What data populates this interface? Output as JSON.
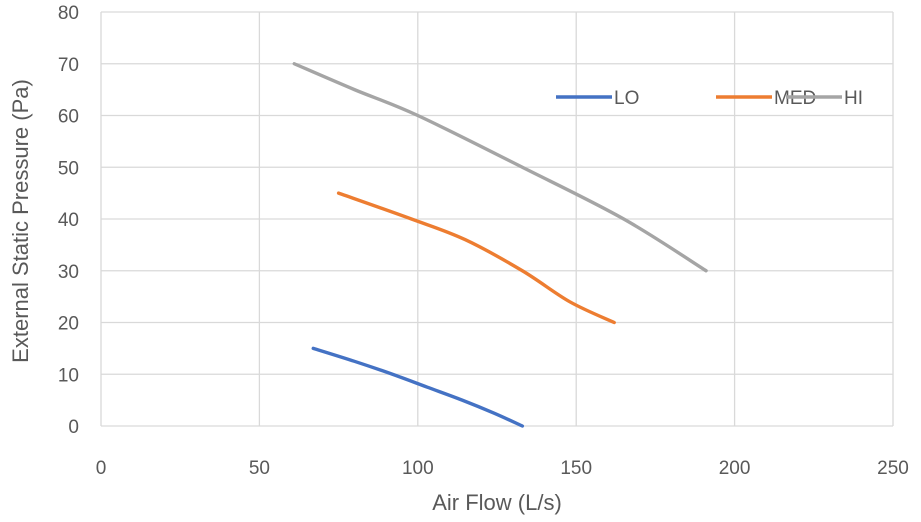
{
  "chart_data": {
    "type": "line",
    "title": "",
    "xlabel": "Air Flow (L/s)",
    "ylabel": "External Static Pressure (Pa)",
    "xlim": [
      0,
      250
    ],
    "ylim": [
      0,
      80
    ],
    "xticks": [
      "0",
      "50",
      "100",
      "150",
      "200",
      "250"
    ],
    "yticks": [
      "0",
      "10",
      "20",
      "30",
      "40",
      "50",
      "60",
      "70",
      "80"
    ],
    "grid": true,
    "legend_position": "top-right",
    "series": [
      {
        "name": "LO",
        "color": "#4472C4",
        "x": [
          67,
          80,
          92,
          103,
          114,
          124,
          133
        ],
        "y": [
          15,
          12.5,
          10,
          7.5,
          5,
          2.5,
          0
        ]
      },
      {
        "name": "MED",
        "color": "#ED7D31",
        "x": [
          75,
          98,
          115,
          133,
          148,
          162
        ],
        "y": [
          45,
          40,
          36,
          30,
          24,
          20
        ]
      },
      {
        "name": "HI",
        "color": "#A5A5A5",
        "x": [
          61,
          80,
          100,
          133,
          165,
          191
        ],
        "y": [
          70,
          65,
          60,
          50,
          40,
          30
        ]
      }
    ]
  }
}
